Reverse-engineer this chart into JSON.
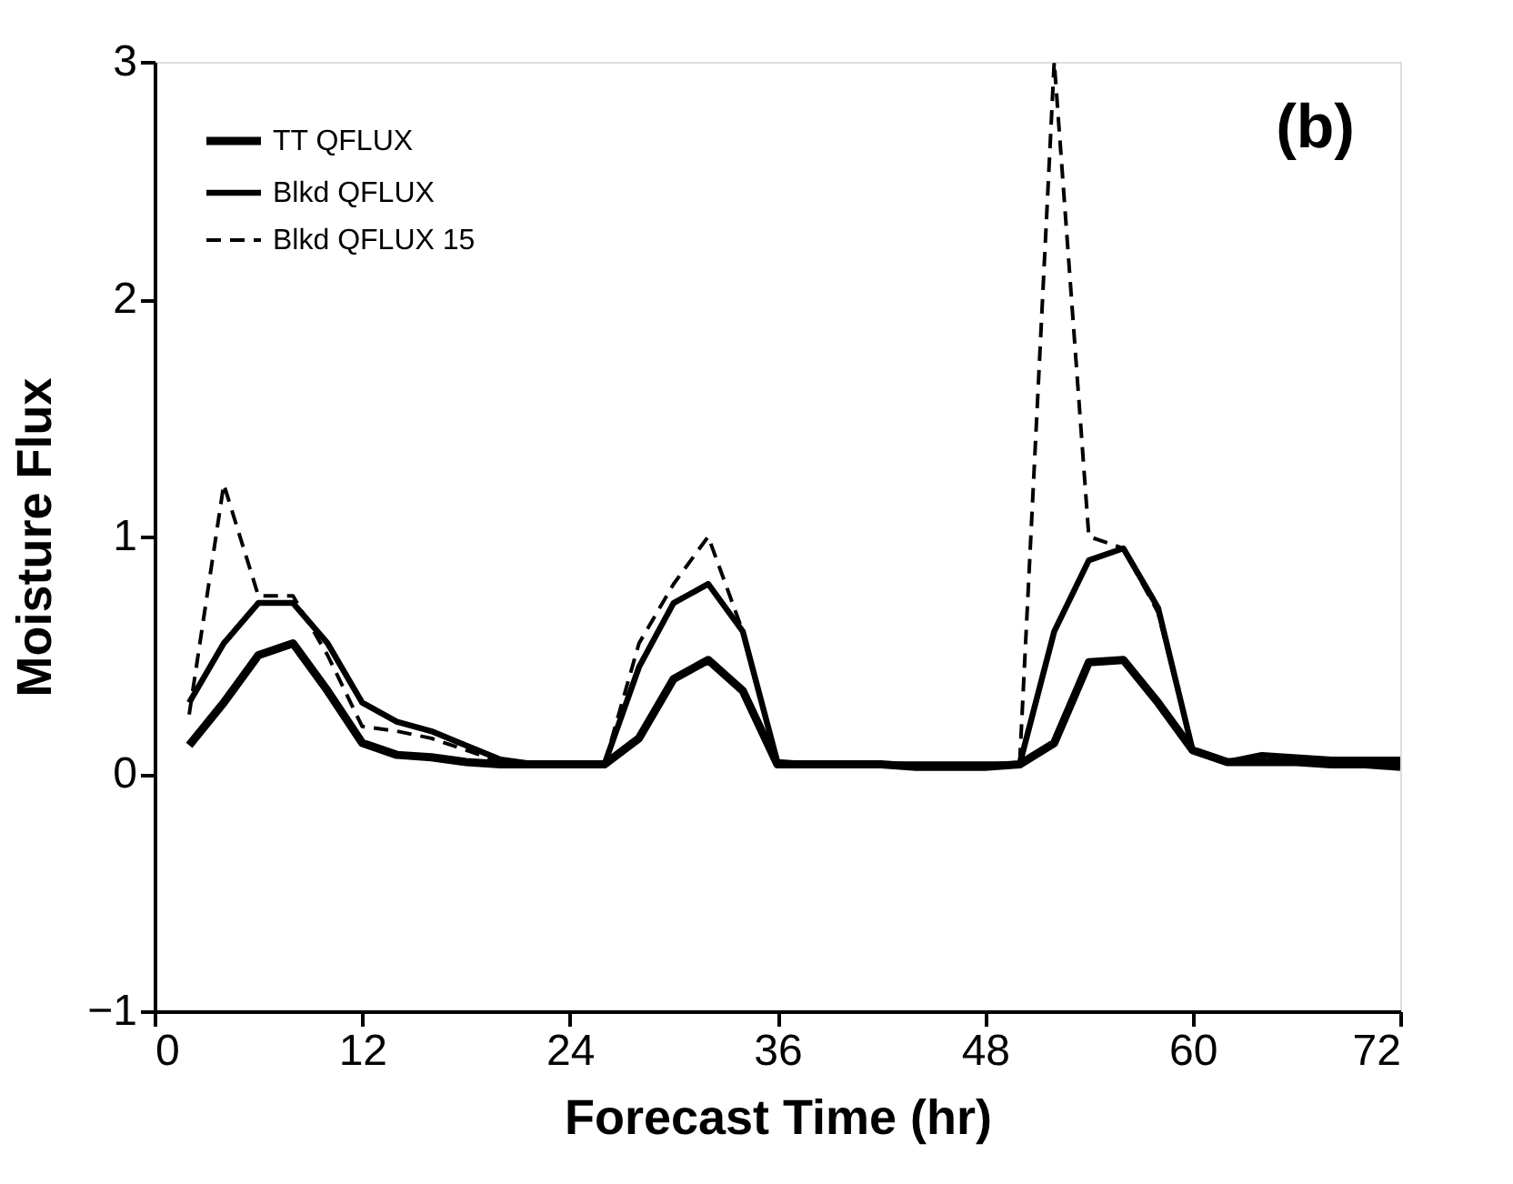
{
  "chart_data": {
    "type": "line",
    "xlabel": "Forecast Time (hr)",
    "ylabel": "Moisture Flux",
    "annotations": [
      "(b)"
    ],
    "x": [
      2,
      4,
      6,
      8,
      10,
      12,
      14,
      16,
      18,
      20,
      22,
      24,
      26,
      28,
      30,
      32,
      34,
      36,
      38,
      40,
      42,
      44,
      46,
      48,
      50,
      52,
      54,
      56,
      58,
      60,
      62,
      64,
      66,
      68,
      70,
      72
    ],
    "series": [
      {
        "name": "TT QFLUX",
        "color": "#000000",
        "line_style": "solid",
        "values": [
          0.12,
          0.3,
          0.5,
          0.55,
          0.35,
          0.13,
          0.08,
          0.07,
          0.05,
          0.04,
          0.04,
          0.04,
          0.04,
          0.15,
          0.4,
          0.48,
          0.35,
          0.04,
          0.04,
          0.04,
          0.04,
          0.03,
          0.03,
          0.03,
          0.04,
          0.13,
          0.47,
          0.48,
          0.3,
          0.1,
          0.05,
          0.05,
          0.05,
          0.04,
          0.04,
          0.03
        ]
      },
      {
        "name": "Blkd QFLUX",
        "color": "#000000",
        "line_style": "solid",
        "values": [
          0.3,
          0.55,
          0.72,
          0.72,
          0.55,
          0.3,
          0.22,
          0.18,
          0.12,
          0.06,
          0.04,
          0.04,
          0.04,
          0.45,
          0.72,
          0.8,
          0.6,
          0.05,
          0.04,
          0.04,
          0.04,
          0.04,
          0.04,
          0.04,
          0.04,
          0.6,
          0.9,
          0.95,
          0.7,
          0.1,
          0.05,
          0.08,
          0.07,
          0.06,
          0.06,
          0.06
        ]
      },
      {
        "name": "Blkd QFLUX 15",
        "color": "#000000",
        "line_style": "dashed",
        "values": [
          0.25,
          1.22,
          0.75,
          0.75,
          0.5,
          0.2,
          0.18,
          0.15,
          0.1,
          0.05,
          0.04,
          0.04,
          0.04,
          0.55,
          0.8,
          1.0,
          0.6,
          0.05,
          0.04,
          0.04,
          0.04,
          0.04,
          0.04,
          0.04,
          0.04,
          3.0,
          1.0,
          0.95,
          0.68,
          0.1,
          0.05,
          0.06,
          0.06,
          0.05,
          0.05,
          0.05
        ]
      }
    ],
    "xlim": [
      0,
      72
    ],
    "xticks": [
      0,
      12,
      24,
      36,
      48,
      60,
      72
    ],
    "ylim": [
      -1,
      3
    ],
    "yticks": [
      -1,
      0,
      1,
      2,
      3
    ],
    "grid": false,
    "legend": "top left",
    "marker": "none"
  }
}
